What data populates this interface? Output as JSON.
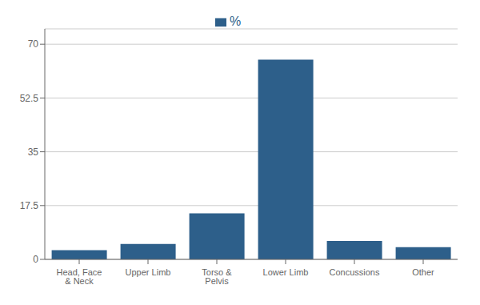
{
  "chart_data": {
    "type": "bar",
    "categories": [
      "Head, Face & Neck",
      "Upper Limb",
      "Torso & Pelvis",
      "Lower Limb",
      "Concussions",
      "Other"
    ],
    "series": [
      {
        "name": "%",
        "color": "#2d5f8a",
        "values": [
          3.0,
          5.0,
          15.0,
          65.0,
          6.0,
          4.0
        ]
      }
    ],
    "ylim": [
      0,
      75
    ],
    "yticks": [
      0,
      17.5,
      35,
      52.5,
      70
    ],
    "grid": true,
    "legend": "top"
  }
}
